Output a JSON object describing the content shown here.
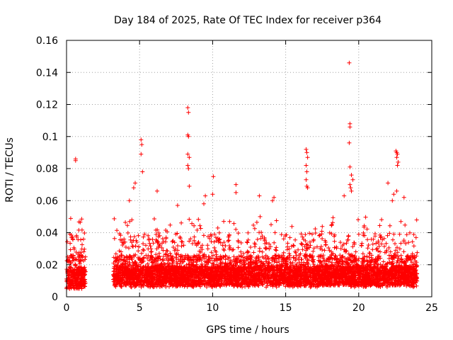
{
  "chart_data": {
    "type": "scatter",
    "title": "Day 184 of 2025, Rate Of TEC Index for receiver p364",
    "xlabel": "GPS time / hours",
    "ylabel": "ROTI / TECUs",
    "xlim": [
      0,
      25
    ],
    "ylim": [
      0,
      0.16
    ],
    "x_ticks": [
      0,
      5,
      10,
      15,
      20,
      25
    ],
    "y_ticks": [
      0,
      0.02,
      0.04,
      0.06,
      0.08,
      0.1,
      0.12,
      0.14,
      0.16
    ],
    "x_tick_labels": [
      "0",
      "5",
      "10",
      "15",
      "20",
      "25"
    ],
    "y_tick_labels": [
      "0",
      "0.02",
      "0.04",
      "0.06",
      "0.08",
      "0.1",
      "0.12",
      "0.14",
      "0.16"
    ],
    "grid": true,
    "marker": "+",
    "series": [
      {
        "name": "ROTI",
        "color": "#ff0000",
        "outliers": [
          {
            "x": 0.62,
            "y": 0.086
          },
          {
            "x": 0.62,
            "y": 0.085
          },
          {
            "x": 4.3,
            "y": 0.06
          },
          {
            "x": 4.6,
            "y": 0.068
          },
          {
            "x": 4.7,
            "y": 0.071
          },
          {
            "x": 5.1,
            "y": 0.098
          },
          {
            "x": 5.15,
            "y": 0.095
          },
          {
            "x": 5.1,
            "y": 0.089
          },
          {
            "x": 5.2,
            "y": 0.078
          },
          {
            "x": 6.2,
            "y": 0.066
          },
          {
            "x": 7.6,
            "y": 0.057
          },
          {
            "x": 8.3,
            "y": 0.118
          },
          {
            "x": 8.35,
            "y": 0.115
          },
          {
            "x": 8.3,
            "y": 0.101
          },
          {
            "x": 8.35,
            "y": 0.1
          },
          {
            "x": 8.3,
            "y": 0.089
          },
          {
            "x": 8.4,
            "y": 0.087
          },
          {
            "x": 8.3,
            "y": 0.082
          },
          {
            "x": 8.35,
            "y": 0.08
          },
          {
            "x": 8.4,
            "y": 0.069
          },
          {
            "x": 9.4,
            "y": 0.058
          },
          {
            "x": 9.5,
            "y": 0.063
          },
          {
            "x": 10.05,
            "y": 0.075
          },
          {
            "x": 10.0,
            "y": 0.064
          },
          {
            "x": 11.6,
            "y": 0.07
          },
          {
            "x": 11.6,
            "y": 0.065
          },
          {
            "x": 13.2,
            "y": 0.063
          },
          {
            "x": 14.2,
            "y": 0.062
          },
          {
            "x": 14.1,
            "y": 0.06
          },
          {
            "x": 16.4,
            "y": 0.092
          },
          {
            "x": 16.45,
            "y": 0.09
          },
          {
            "x": 16.5,
            "y": 0.087
          },
          {
            "x": 16.4,
            "y": 0.082
          },
          {
            "x": 16.45,
            "y": 0.078
          },
          {
            "x": 16.4,
            "y": 0.073
          },
          {
            "x": 16.45,
            "y": 0.069
          },
          {
            "x": 16.5,
            "y": 0.068
          },
          {
            "x": 19.35,
            "y": 0.146
          },
          {
            "x": 19.4,
            "y": 0.108
          },
          {
            "x": 19.4,
            "y": 0.106
          },
          {
            "x": 19.35,
            "y": 0.096
          },
          {
            "x": 19.4,
            "y": 0.081
          },
          {
            "x": 19.5,
            "y": 0.076
          },
          {
            "x": 19.6,
            "y": 0.073
          },
          {
            "x": 19.4,
            "y": 0.07
          },
          {
            "x": 19.45,
            "y": 0.068
          },
          {
            "x": 19.5,
            "y": 0.066
          },
          {
            "x": 19.0,
            "y": 0.063
          },
          {
            "x": 22.0,
            "y": 0.071
          },
          {
            "x": 22.3,
            "y": 0.06
          },
          {
            "x": 22.55,
            "y": 0.091
          },
          {
            "x": 22.6,
            "y": 0.09
          },
          {
            "x": 22.65,
            "y": 0.089
          },
          {
            "x": 22.6,
            "y": 0.087
          },
          {
            "x": 22.7,
            "y": 0.084
          },
          {
            "x": 22.65,
            "y": 0.082
          },
          {
            "x": 22.6,
            "y": 0.066
          },
          {
            "x": 22.4,
            "y": 0.064
          },
          {
            "x": 23.1,
            "y": 0.062
          }
        ],
        "data_segments": [
          {
            "x_start": 0.0,
            "x_end": 1.3,
            "baseline_y": 0.01
          },
          {
            "x_start": 3.2,
            "x_end": 24.0,
            "baseline_y": 0.012
          }
        ]
      }
    ]
  }
}
